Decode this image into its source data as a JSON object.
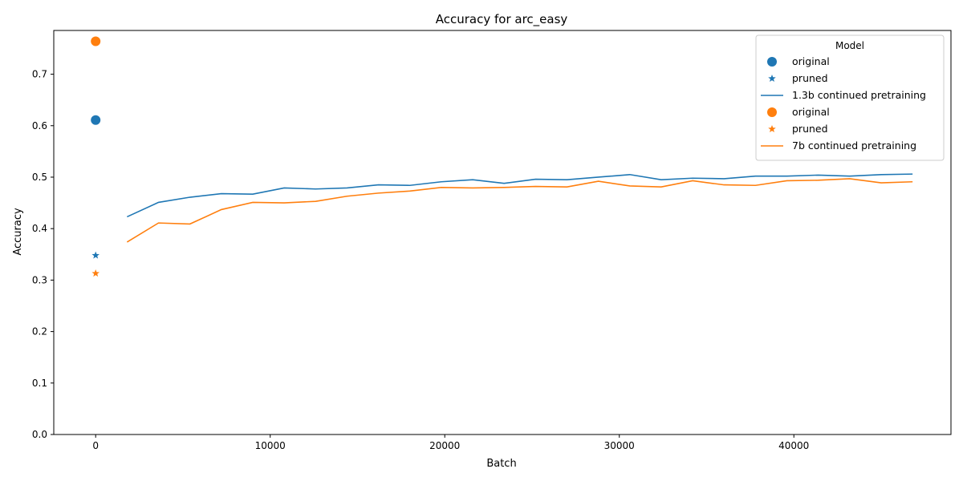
{
  "chart_data": {
    "type": "line",
    "title": "Accuracy for arc_easy",
    "xlabel": "Batch",
    "ylabel": "Accuracy",
    "xlim": [
      -2400,
      49000
    ],
    "ylim": [
      0.0,
      0.785
    ],
    "xticks": [
      0,
      10000,
      20000,
      30000,
      40000
    ],
    "xtick_labels": [
      "0",
      "10000",
      "20000",
      "30000",
      "40000"
    ],
    "yticks": [
      0.0,
      0.1,
      0.2,
      0.3,
      0.4,
      0.5,
      0.6,
      0.7
    ],
    "ytick_labels": [
      "0.0",
      "0.1",
      "0.2",
      "0.3",
      "0.4",
      "0.5",
      "0.6",
      "0.7"
    ],
    "grid": false,
    "legend": {
      "title": "Model",
      "placement": "top-right",
      "entries": [
        {
          "label": "original",
          "marker": "circle",
          "color": "#1f77b4"
        },
        {
          "label": "pruned",
          "marker": "star",
          "color": "#1f77b4"
        },
        {
          "label": "1.3b continued pretraining",
          "marker": "line",
          "color": "#1f77b4"
        },
        {
          "label": "original",
          "marker": "circle",
          "color": "#ff7f0e"
        },
        {
          "label": "pruned",
          "marker": "star",
          "color": "#ff7f0e"
        },
        {
          "label": "7b continued pretraining",
          "marker": "line",
          "color": "#ff7f0e"
        }
      ]
    },
    "points": [
      {
        "model": "1.3b",
        "kind": "original",
        "marker": "circle",
        "color": "#1f77b4",
        "x": 0,
        "y": 0.611
      },
      {
        "model": "1.3b",
        "kind": "pruned",
        "marker": "star",
        "color": "#1f77b4",
        "x": 0,
        "y": 0.348
      },
      {
        "model": "7b",
        "kind": "original",
        "marker": "circle",
        "color": "#ff7f0e",
        "x": 0,
        "y": 0.764
      },
      {
        "model": "7b",
        "kind": "pruned",
        "marker": "star",
        "color": "#ff7f0e",
        "x": 0,
        "y": 0.313
      }
    ],
    "x": [
      1800,
      3600,
      5400,
      7200,
      9000,
      10800,
      12600,
      14400,
      16200,
      18000,
      19800,
      21600,
      23400,
      25200,
      27000,
      28800,
      30600,
      32400,
      34200,
      36000,
      37800,
      39600,
      41400,
      43200,
      45000,
      46800
    ],
    "series": [
      {
        "name": "1.3b continued pretraining",
        "color": "#1f77b4",
        "values": [
          0.423,
          0.451,
          0.461,
          0.468,
          0.467,
          0.479,
          0.477,
          0.479,
          0.485,
          0.484,
          0.491,
          0.495,
          0.488,
          0.496,
          0.495,
          0.5,
          0.505,
          0.495,
          0.498,
          0.497,
          0.502,
          0.502,
          0.504,
          0.502,
          0.505,
          0.506
        ]
      },
      {
        "name": "7b continued pretraining",
        "color": "#ff7f0e",
        "values": [
          0.374,
          0.411,
          0.409,
          0.437,
          0.451,
          0.45,
          0.453,
          0.463,
          0.469,
          0.473,
          0.48,
          0.479,
          0.48,
          0.482,
          0.481,
          0.492,
          0.483,
          0.481,
          0.493,
          0.485,
          0.484,
          0.493,
          0.494,
          0.497,
          0.489,
          0.491
        ]
      }
    ]
  }
}
